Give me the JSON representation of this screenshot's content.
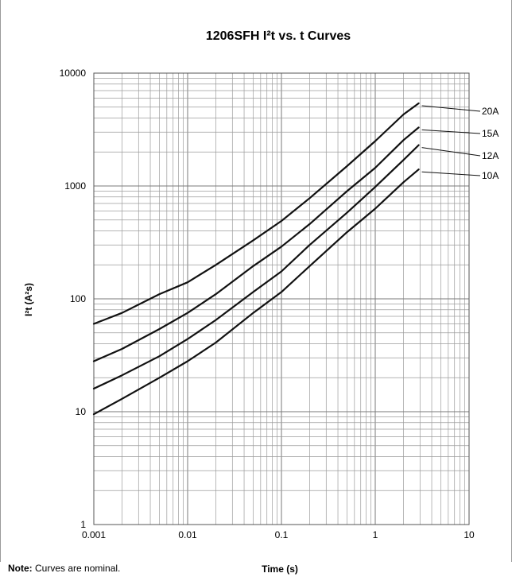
{
  "chart_data": {
    "type": "line",
    "title": "1206SFH I²t  vs. t Curves",
    "xlabel": "Time (s)",
    "ylabel": "I²t (A²s)",
    "xscale": "log",
    "yscale": "log",
    "xlim": [
      0.001,
      10
    ],
    "ylim": [
      1,
      10000
    ],
    "grid": true,
    "x_ticks": [
      "0.001",
      "0.01",
      "0.1",
      "1",
      "10"
    ],
    "y_ticks": [
      "1",
      "10",
      "100",
      "1000",
      "10000"
    ],
    "legend": "curve labels at right end of each curve",
    "series": [
      {
        "name": "20A",
        "points": [
          [
            0.001,
            60
          ],
          [
            0.002,
            75
          ],
          [
            0.005,
            110
          ],
          [
            0.01,
            140
          ],
          [
            0.02,
            200
          ],
          [
            0.05,
            330
          ],
          [
            0.1,
            490
          ],
          [
            0.2,
            780
          ],
          [
            0.5,
            1500
          ],
          [
            1,
            2500
          ],
          [
            2,
            4300
          ],
          [
            2.9,
            5400
          ]
        ]
      },
      {
        "name": "15A",
        "points": [
          [
            0.001,
            28
          ],
          [
            0.002,
            36
          ],
          [
            0.005,
            54
          ],
          [
            0.01,
            75
          ],
          [
            0.02,
            110
          ],
          [
            0.05,
            195
          ],
          [
            0.1,
            290
          ],
          [
            0.2,
            460
          ],
          [
            0.5,
            900
          ],
          [
            1,
            1450
          ],
          [
            2,
            2550
          ],
          [
            2.9,
            3300
          ]
        ]
      },
      {
        "name": "12A",
        "points": [
          [
            0.001,
            16
          ],
          [
            0.002,
            21
          ],
          [
            0.005,
            31
          ],
          [
            0.01,
            44
          ],
          [
            0.02,
            65
          ],
          [
            0.05,
            115
          ],
          [
            0.1,
            175
          ],
          [
            0.2,
            300
          ],
          [
            0.5,
            580
          ],
          [
            1,
            980
          ],
          [
            2,
            1700
          ],
          [
            2.9,
            2300
          ]
        ]
      },
      {
        "name": "10A",
        "points": [
          [
            0.001,
            9.5
          ],
          [
            0.002,
            13
          ],
          [
            0.005,
            20
          ],
          [
            0.01,
            28
          ],
          [
            0.02,
            41
          ],
          [
            0.05,
            75
          ],
          [
            0.1,
            115
          ],
          [
            0.2,
            195
          ],
          [
            0.5,
            390
          ],
          [
            1,
            630
          ],
          [
            2,
            1080
          ],
          [
            2.9,
            1400
          ]
        ]
      }
    ]
  },
  "note": {
    "label": "Note:",
    "text": "Curves are nominal."
  }
}
